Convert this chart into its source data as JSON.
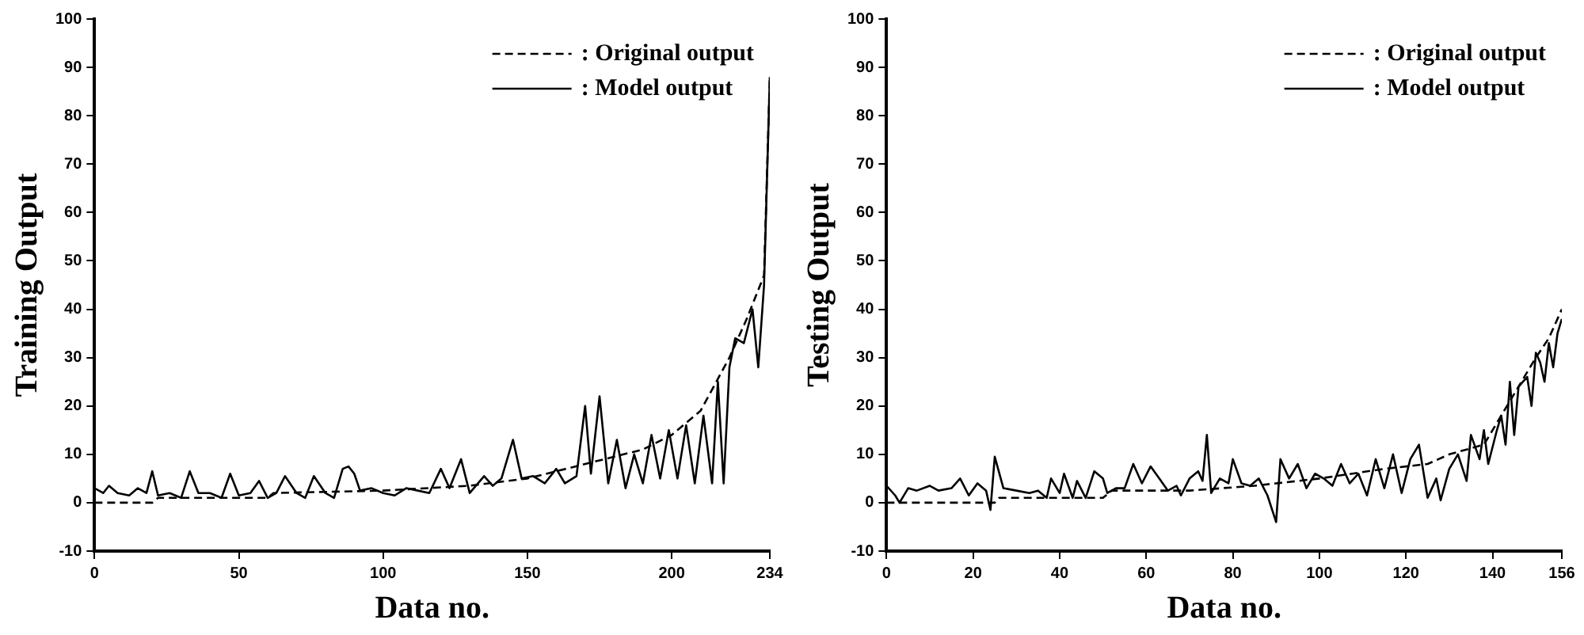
{
  "chart_data": [
    {
      "type": "line",
      "xlabel": "Data no.",
      "ylabel": "Training Output",
      "xlim": [
        0,
        234
      ],
      "xticks": [
        0,
        50,
        100,
        150,
        200,
        234
      ],
      "ylim": [
        -10,
        100
      ],
      "yticks": [
        -10,
        0,
        10,
        20,
        30,
        40,
        50,
        60,
        70,
        80,
        90,
        100
      ],
      "grid": false,
      "legend": "top right",
      "marker": "none",
      "series": [
        {
          "name": ": Original output",
          "color": "#000000",
          "line_style": "dashed",
          "x": [
            0,
            20,
            22,
            60,
            62,
            100,
            130,
            150,
            170,
            190,
            200,
            210,
            220,
            226,
            232,
            234
          ],
          "values": [
            0,
            0,
            1,
            1,
            2,
            2.5,
            3.5,
            5,
            8,
            11,
            14,
            19,
            30,
            38,
            47,
            88
          ]
        },
        {
          "name": ": Model output",
          "color": "#000000",
          "line_style": "solid",
          "x": [
            0,
            3,
            5,
            8,
            12,
            15,
            18,
            20,
            22,
            26,
            30,
            33,
            36,
            40,
            44,
            47,
            50,
            54,
            57,
            60,
            63,
            66,
            70,
            73,
            76,
            80,
            83,
            86,
            88,
            90,
            92,
            96,
            100,
            104,
            108,
            112,
            116,
            120,
            123,
            127,
            130,
            135,
            138,
            141,
            145,
            148,
            152,
            156,
            160,
            163,
            167,
            170,
            172,
            175,
            178,
            181,
            184,
            187,
            190,
            193,
            196,
            199,
            202,
            205,
            208,
            211,
            214,
            216,
            218,
            220,
            222,
            225,
            228,
            230,
            232,
            234
          ],
          "values": [
            3,
            2,
            3.5,
            2,
            1.5,
            3,
            2,
            6.5,
            1.5,
            2,
            1,
            6.5,
            2,
            2,
            1,
            6,
            1.5,
            2,
            4.5,
            1,
            2,
            5.5,
            2,
            1,
            5.5,
            2,
            1,
            7,
            7.5,
            6,
            2.5,
            3,
            2,
            1.5,
            3,
            2.5,
            2,
            7,
            3,
            9,
            2,
            5.5,
            3.5,
            5,
            13,
            5,
            5.5,
            4,
            7,
            4,
            5.5,
            20,
            6,
            22,
            4,
            13,
            3,
            10,
            4,
            14,
            5,
            15,
            5,
            16,
            4,
            18,
            4,
            25,
            4,
            28,
            34,
            33,
            40,
            28,
            45,
            88
          ]
        }
      ]
    },
    {
      "type": "line",
      "xlabel": "Data no.",
      "ylabel": "Testing Output",
      "xlim": [
        0,
        156
      ],
      "xticks": [
        0,
        20,
        40,
        60,
        80,
        100,
        120,
        140,
        156
      ],
      "ylim": [
        -10,
        100
      ],
      "yticks": [
        -10,
        0,
        10,
        20,
        30,
        40,
        50,
        60,
        70,
        80,
        90,
        100
      ],
      "grid": false,
      "legend": "top right",
      "marker": "none",
      "series": [
        {
          "name": ": Original output",
          "color": "#000000",
          "line_style": "dashed",
          "x": [
            0,
            25,
            26,
            50,
            52,
            70,
            85,
            100,
            115,
            125,
            130,
            138,
            142,
            146,
            150,
            153,
            156
          ],
          "values": [
            0,
            0,
            1,
            1,
            2.5,
            2.5,
            3.5,
            5,
            7,
            8,
            10,
            12,
            18,
            24,
            30,
            34,
            40
          ]
        },
        {
          "name": ": Model output",
          "color": "#000000",
          "line_style": "solid",
          "x": [
            0,
            2,
            3,
            5,
            7,
            10,
            12,
            15,
            17,
            19,
            21,
            23,
            24,
            25,
            27,
            30,
            33,
            35,
            37,
            38,
            40,
            41,
            43,
            44,
            46,
            48,
            50,
            51,
            53,
            55,
            57,
            59,
            61,
            63,
            65,
            67,
            68,
            70,
            72,
            73,
            74,
            75,
            77,
            79,
            80,
            82,
            84,
            86,
            88,
            90,
            91,
            93,
            95,
            97,
            99,
            101,
            103,
            105,
            107,
            109,
            111,
            113,
            115,
            117,
            119,
            121,
            123,
            125,
            127,
            128,
            130,
            132,
            134,
            135,
            137,
            138,
            139,
            141,
            142,
            143,
            144,
            145,
            146,
            148,
            149,
            150,
            151,
            152,
            153,
            154,
            155,
            156
          ],
          "values": [
            3.5,
            1.5,
            0,
            3,
            2.5,
            3.5,
            2.5,
            3,
            5,
            1.5,
            4,
            2.5,
            -1.5,
            9.5,
            3,
            2.5,
            2,
            2.5,
            1,
            5,
            2,
            6,
            1,
            4.5,
            1,
            6.5,
            5,
            2,
            3,
            3,
            8,
            4,
            7.5,
            5,
            2.5,
            3.5,
            1.5,
            5,
            6.5,
            4.5,
            14,
            2,
            5,
            4,
            9,
            4,
            3.5,
            5,
            1.5,
            -4,
            9,
            5,
            8,
            3,
            6,
            5,
            3.5,
            8,
            4,
            6,
            1.5,
            9,
            3,
            10,
            2,
            9,
            12,
            1,
            5,
            0.5,
            7,
            10,
            4.5,
            14,
            9,
            15,
            8,
            15,
            18,
            12,
            25,
            14,
            24,
            26,
            20,
            31,
            29,
            25,
            33,
            28,
            35,
            38
          ]
        }
      ]
    }
  ]
}
